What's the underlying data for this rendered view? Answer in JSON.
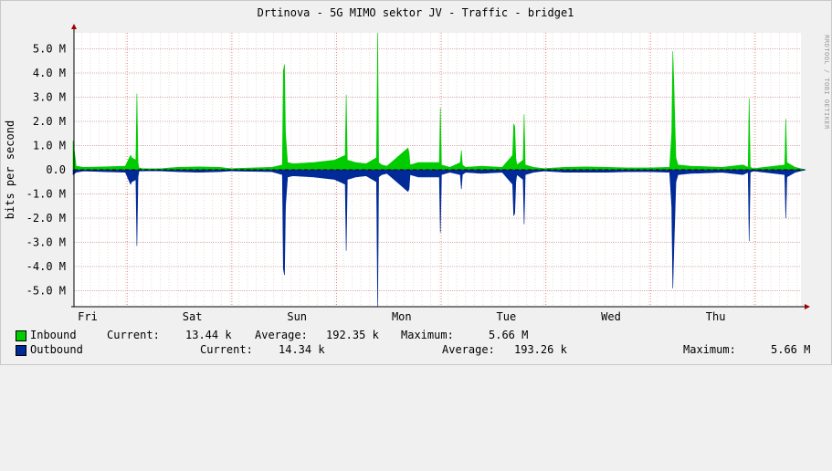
{
  "chart_data": {
    "type": "area",
    "title": "Drtinova - 5G MIMO sektor JV - Traffic - bridge1",
    "ylabel": "bits per second",
    "xlabel": "",
    "watermark": "RRDTOOL / TOBI OETIKER",
    "ylim": [
      -5.66,
      5.66
    ],
    "xlim": [
      0,
      7
    ],
    "grid": true,
    "x_unit": "days from start of Fri",
    "x_ticks": [
      {
        "label": "Fri",
        "x": 0
      },
      {
        "label": "Sat",
        "x": 1
      },
      {
        "label": "Sun",
        "x": 2
      },
      {
        "label": "Mon",
        "x": 3
      },
      {
        "label": "Tue",
        "x": 4
      },
      {
        "label": "Wed",
        "x": 5
      },
      {
        "label": "Thu",
        "x": 6
      }
    ],
    "y_ticks": [
      {
        "label": "5.0 M",
        "value": 5
      },
      {
        "label": "4.0 M",
        "value": 4
      },
      {
        "label": "3.0 M",
        "value": 3
      },
      {
        "label": "2.0 M",
        "value": 2
      },
      {
        "label": "1.0 M",
        "value": 1
      },
      {
        "label": "0.0",
        "value": 0
      },
      {
        "label": "-1.0 M",
        "value": -1
      },
      {
        "label": "-2.0 M",
        "value": -2
      },
      {
        "label": "-3.0 M",
        "value": -3
      },
      {
        "label": "-4.0 M",
        "value": -4
      },
      {
        "label": "-5.0 M",
        "value": -5
      }
    ],
    "series": [
      {
        "name": "Inbound",
        "color": "#00cc00",
        "x": [
          0.0,
          0.03,
          0.1,
          0.3,
          0.5,
          0.55,
          0.56,
          0.6,
          0.61,
          0.62,
          0.63,
          0.64,
          0.66,
          0.75,
          0.85,
          1.0,
          1.2,
          1.4,
          1.5,
          1.9,
          2.0,
          2.01,
          2.02,
          2.03,
          2.05,
          2.1,
          2.3,
          2.5,
          2.6,
          2.61,
          2.62,
          2.7,
          2.8,
          2.9,
          2.91,
          2.92,
          2.95,
          3.0,
          3.2,
          3.21,
          3.22,
          3.3,
          3.5,
          3.51,
          3.52,
          3.6,
          3.7,
          3.71,
          3.72,
          3.75,
          3.9,
          4.1,
          4.2,
          4.21,
          4.22,
          4.23,
          4.24,
          4.3,
          4.31,
          4.32,
          4.4,
          4.5,
          4.7,
          4.9,
          5.1,
          5.3,
          5.5,
          5.7,
          5.72,
          5.73,
          5.74,
          5.75,
          5.76,
          5.78,
          5.9,
          6.2,
          6.4,
          6.45,
          6.46,
          6.47,
          6.5,
          6.7,
          6.8,
          6.81,
          6.82,
          6.9,
          7.0
        ],
        "values": [
          1.2,
          0.15,
          0.1,
          0.12,
          0.15,
          0.6,
          0.5,
          0.4,
          3.15,
          0.3,
          0.05,
          0.08,
          0.05,
          0.04,
          0.05,
          0.1,
          0.12,
          0.1,
          0.05,
          0.1,
          0.2,
          4.1,
          4.35,
          1.5,
          0.3,
          0.25,
          0.3,
          0.4,
          0.6,
          3.1,
          0.4,
          0.3,
          0.25,
          0.5,
          5.66,
          0.3,
          0.2,
          0.15,
          0.9,
          0.7,
          0.2,
          0.3,
          0.3,
          2.55,
          0.2,
          0.1,
          0.3,
          0.8,
          0.2,
          0.1,
          0.15,
          0.1,
          0.6,
          1.9,
          1.8,
          0.5,
          0.2,
          0.4,
          2.3,
          0.2,
          0.1,
          0.05,
          0.1,
          0.12,
          0.1,
          0.08,
          0.08,
          0.1,
          1.5,
          4.9,
          3.6,
          2.0,
          0.5,
          0.2,
          0.15,
          0.1,
          0.2,
          0.1,
          2.95,
          0.1,
          0.05,
          0.15,
          0.2,
          2.1,
          0.3,
          0.1,
          0.0
        ]
      },
      {
        "name": "Outbound",
        "color": "#002a97",
        "x": [
          0.0,
          0.03,
          0.1,
          0.3,
          0.5,
          0.55,
          0.56,
          0.6,
          0.61,
          0.62,
          0.63,
          0.64,
          0.66,
          0.75,
          0.85,
          1.0,
          1.2,
          1.4,
          1.5,
          1.9,
          2.0,
          2.01,
          2.02,
          2.03,
          2.05,
          2.1,
          2.3,
          2.5,
          2.6,
          2.61,
          2.62,
          2.7,
          2.8,
          2.9,
          2.91,
          2.92,
          2.95,
          3.0,
          3.2,
          3.21,
          3.22,
          3.3,
          3.5,
          3.51,
          3.52,
          3.6,
          3.7,
          3.71,
          3.72,
          3.75,
          3.9,
          4.1,
          4.2,
          4.21,
          4.22,
          4.23,
          4.24,
          4.3,
          4.31,
          4.32,
          4.4,
          4.5,
          4.7,
          4.9,
          5.1,
          5.3,
          5.5,
          5.7,
          5.72,
          5.73,
          5.74,
          5.75,
          5.76,
          5.78,
          5.9,
          6.2,
          6.4,
          6.45,
          6.46,
          6.47,
          6.5,
          6.7,
          6.8,
          6.81,
          6.82,
          6.9,
          7.0
        ],
        "values": [
          -0.2,
          -0.1,
          -0.05,
          -0.08,
          -0.1,
          -0.6,
          -0.5,
          -0.4,
          -3.15,
          -0.3,
          -0.05,
          -0.05,
          -0.05,
          -0.04,
          -0.05,
          -0.08,
          -0.1,
          -0.08,
          -0.05,
          -0.08,
          -0.2,
          -4.1,
          -4.35,
          -1.5,
          -0.3,
          -0.25,
          -0.3,
          -0.4,
          -0.6,
          -3.35,
          -0.4,
          -0.3,
          -0.25,
          -0.5,
          -5.66,
          -0.3,
          -0.2,
          -0.15,
          -0.9,
          -0.8,
          -0.2,
          -0.3,
          -0.3,
          -2.6,
          -0.2,
          -0.1,
          -0.2,
          -0.8,
          -0.2,
          -0.1,
          -0.15,
          -0.1,
          -0.6,
          -1.9,
          -1.8,
          -0.5,
          -0.2,
          -0.4,
          -2.25,
          -0.2,
          -0.1,
          -0.05,
          -0.1,
          -0.1,
          -0.1,
          -0.08,
          -0.08,
          -0.1,
          -1.5,
          -4.9,
          -3.3,
          -2.0,
          -0.5,
          -0.2,
          -0.15,
          -0.1,
          -0.2,
          -0.1,
          -2.95,
          -0.1,
          -0.05,
          -0.15,
          -0.2,
          -2.0,
          -0.3,
          -0.1,
          0.0
        ]
      }
    ]
  },
  "legend": [
    {
      "key": "inbound",
      "label": "Inbound",
      "color": "#00cc00",
      "current_label": "Current:",
      "current": "13.44 k",
      "average_label": "Average:",
      "average": "192.35 k",
      "maximum_label": "Maximum:",
      "maximum": "5.66 M"
    },
    {
      "key": "outbound",
      "label": "Outbound",
      "color": "#002a97",
      "current_label": "Current:",
      "current": "14.34 k",
      "average_label": "Average:",
      "average": "193.26 k",
      "maximum_label": "Maximum:",
      "maximum": "5.66 M"
    }
  ]
}
